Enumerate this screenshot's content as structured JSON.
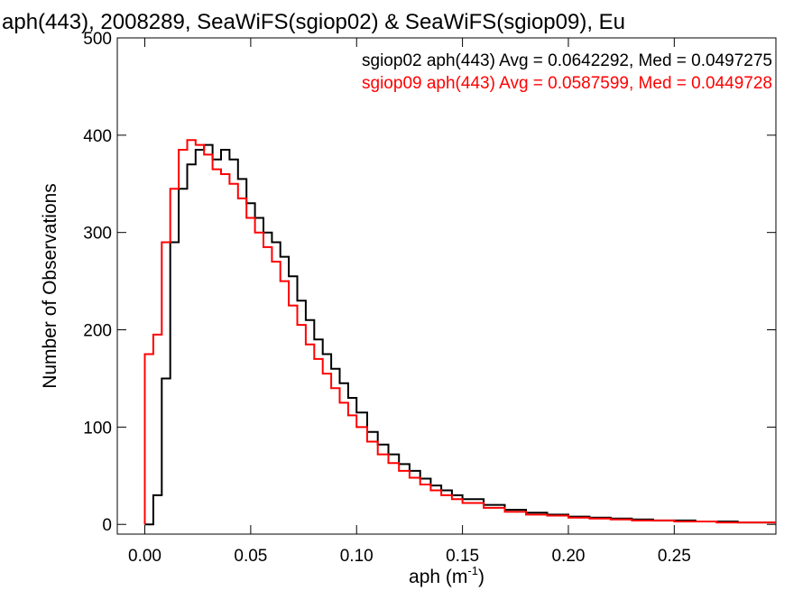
{
  "chart_data": {
    "type": "line",
    "title": "aph(443), 2008289, SeaWiFS(sgiop02) & SeaWiFS(sgiop09), Eu",
    "xlabel": "aph (m",
    "xlabel_sup": "-1",
    "xlabel_close": ")",
    "ylabel": "Number of Observations",
    "xlim": [
      -0.013,
      0.298
    ],
    "ylim": [
      -10,
      500
    ],
    "x_ticks": [
      0.0,
      0.05,
      0.1,
      0.15,
      0.2,
      0.25
    ],
    "x_tick_labels": [
      "0.00",
      "0.05",
      "0.10",
      "0.15",
      "0.20",
      "0.25"
    ],
    "y_ticks": [
      0,
      100,
      200,
      300,
      400,
      500
    ],
    "y_tick_labels": [
      "0",
      "100",
      "200",
      "300",
      "400",
      "500"
    ],
    "grid": false,
    "legend_position": "top-right",
    "series": [
      {
        "name": "sgiop02 aph(443) Avg = 0.0642292, Med = 0.0497275",
        "color": "#000000",
        "x": [
          0.0,
          0.004,
          0.008,
          0.012,
          0.016,
          0.02,
          0.024,
          0.028,
          0.032,
          0.036,
          0.04,
          0.044,
          0.048,
          0.052,
          0.056,
          0.06,
          0.064,
          0.068,
          0.072,
          0.076,
          0.08,
          0.084,
          0.088,
          0.092,
          0.096,
          0.1,
          0.105,
          0.11,
          0.115,
          0.12,
          0.125,
          0.13,
          0.135,
          0.14,
          0.145,
          0.15,
          0.16,
          0.17,
          0.18,
          0.19,
          0.2,
          0.21,
          0.22,
          0.23,
          0.24,
          0.25,
          0.26,
          0.27,
          0.28,
          0.29,
          0.298
        ],
        "y": [
          0,
          30,
          150,
          290,
          345,
          370,
          385,
          390,
          375,
          385,
          375,
          355,
          330,
          315,
          300,
          290,
          275,
          255,
          230,
          210,
          190,
          175,
          160,
          145,
          130,
          115,
          95,
          82,
          72,
          62,
          55,
          47,
          40,
          35,
          30,
          26,
          20,
          15,
          12,
          10,
          8,
          7,
          6,
          5,
          4,
          4,
          3,
          3,
          2,
          2,
          2
        ]
      },
      {
        "name": "sgiop09 aph(443) Avg = 0.0587599, Med = 0.0449728",
        "color": "#ff0000",
        "x": [
          0.0,
          0.004,
          0.008,
          0.012,
          0.016,
          0.02,
          0.024,
          0.028,
          0.032,
          0.036,
          0.04,
          0.044,
          0.048,
          0.052,
          0.056,
          0.06,
          0.064,
          0.068,
          0.072,
          0.076,
          0.08,
          0.084,
          0.088,
          0.092,
          0.096,
          0.1,
          0.105,
          0.11,
          0.115,
          0.12,
          0.125,
          0.13,
          0.135,
          0.14,
          0.145,
          0.15,
          0.16,
          0.17,
          0.18,
          0.19,
          0.2,
          0.21,
          0.22,
          0.23,
          0.24,
          0.25,
          0.26,
          0.27,
          0.28,
          0.29,
          0.298
        ],
        "y": [
          175,
          195,
          290,
          345,
          385,
          395,
          390,
          380,
          365,
          360,
          350,
          335,
          315,
          300,
          285,
          270,
          250,
          225,
          205,
          185,
          170,
          155,
          140,
          125,
          112,
          100,
          85,
          72,
          63,
          55,
          48,
          41,
          35,
          30,
          26,
          22,
          17,
          13,
          10,
          9,
          7,
          6,
          5,
          4,
          4,
          3,
          3,
          2,
          2,
          2,
          2
        ]
      }
    ]
  }
}
